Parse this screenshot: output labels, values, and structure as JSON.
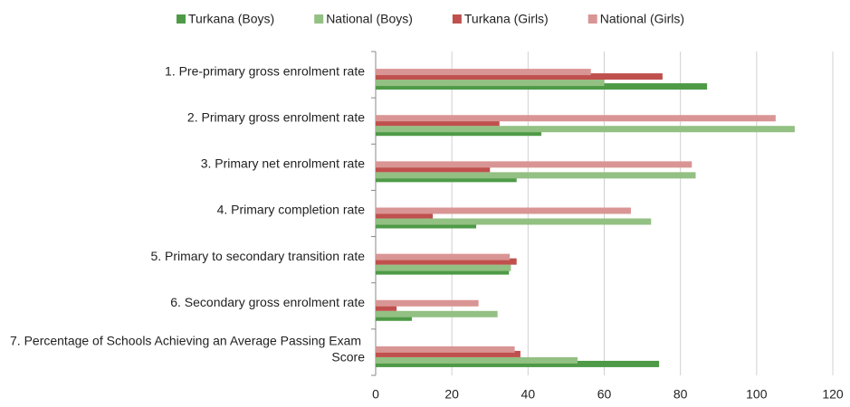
{
  "chart_data": {
    "type": "hbar",
    "categories": [
      "1. Pre-primary gross enrolment rate",
      "2. Primary gross enrolment rate",
      "3. Primary net enrolment rate",
      "4. Primary completion rate",
      "5. Primary to secondary transition rate",
      "6. Secondary gross enrolment rate",
      "7. Percentage of Schools Achieving an Average Passing Exam Score"
    ],
    "series": [
      {
        "name": "Turkana (Boys)",
        "color": "#4e9a47",
        "values": [
          87,
          43.5,
          37,
          26.4,
          35,
          9.5,
          74.4
        ]
      },
      {
        "name": "National (Boys)",
        "color": "#93c083",
        "values": [
          60,
          110,
          84,
          72.3,
          35.5,
          32,
          53
        ]
      },
      {
        "name": "Turkana (Girls)",
        "color": "#c0504d",
        "values": [
          75.3,
          32.5,
          30,
          15,
          37,
          5.5,
          38
        ]
      },
      {
        "name": "National (Girls)",
        "color": "#d99594",
        "values": [
          56.5,
          105,
          83,
          67,
          35.2,
          27,
          36.5
        ]
      }
    ],
    "xlim": [
      0,
      120
    ],
    "xticks": [
      0,
      20,
      40,
      60,
      80,
      100,
      120
    ],
    "grid": true,
    "legend": "top"
  }
}
